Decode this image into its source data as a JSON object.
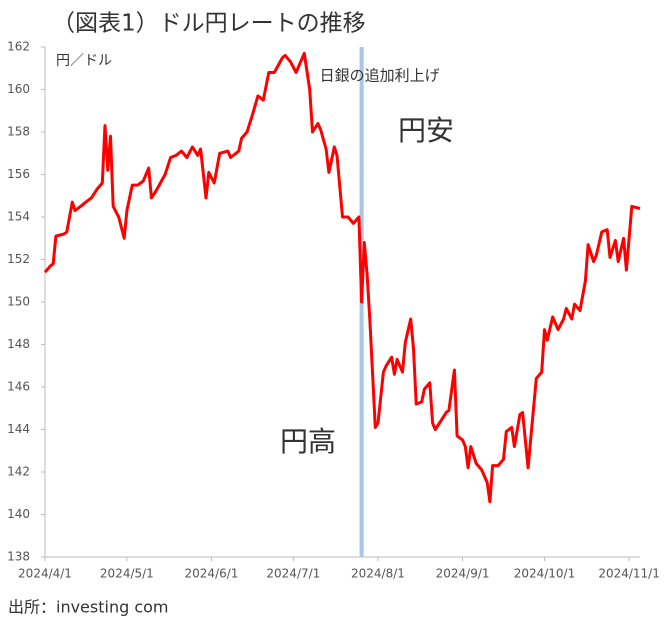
{
  "chart_data": {
    "type": "line",
    "title": "（図表1）ドル円レートの推移",
    "y_unit": "円／ドル",
    "source": "出所：investing com",
    "color": "#ff0000",
    "annotations": [
      "円安",
      "円高"
    ],
    "vline": {
      "x": "2024/7/26",
      "label": "日銀の追加利上げ",
      "color": "#a9c6e8"
    },
    "xlim": [
      "2024/4/1",
      "2024/11/5"
    ],
    "xticks": [
      "2024/4/1",
      "2024/5/1",
      "2024/6/1",
      "2024/7/1",
      "2024/8/1",
      "2024/9/1",
      "2024/10/1",
      "2024/11/1"
    ],
    "ylim": [
      138,
      162
    ],
    "yticks": [
      138,
      140,
      142,
      144,
      146,
      148,
      150,
      152,
      154,
      156,
      158,
      160,
      162
    ],
    "x": [
      "2024/4/1",
      "2024/4/3",
      "2024/4/4",
      "2024/4/5",
      "2024/4/8",
      "2024/4/9",
      "2024/4/11",
      "2024/4/12",
      "2024/4/14",
      "2024/4/16",
      "2024/4/18",
      "2024/4/20",
      "2024/4/22",
      "2024/4/23",
      "2024/4/24",
      "2024/4/25",
      "2024/4/26",
      "2024/4/28",
      "2024/4/30",
      "2024/5/1",
      "2024/5/3",
      "2024/5/5",
      "2024/5/7",
      "2024/5/9",
      "2024/5/10",
      "2024/5/12",
      "2024/5/15",
      "2024/5/17",
      "2024/5/19",
      "2024/5/21",
      "2024/5/23",
      "2024/5/25",
      "2024/5/27",
      "2024/5/28",
      "2024/5/30",
      "2024/5/31",
      "2024/6/2",
      "2024/6/4",
      "2024/6/7",
      "2024/6/8",
      "2024/6/11",
      "2024/6/12",
      "2024/6/14",
      "2024/6/16",
      "2024/6/18",
      "2024/6/20",
      "2024/6/22",
      "2024/6/24",
      "2024/6/27",
      "2024/6/28",
      "2024/6/30",
      "2024/7/2",
      "2024/7/3",
      "2024/7/5",
      "2024/7/7",
      "2024/7/8",
      "2024/7/10",
      "2024/7/11",
      "2024/7/13",
      "2024/7/14",
      "2024/7/16",
      "2024/7/17",
      "2024/7/19",
      "2024/7/21",
      "2024/7/23",
      "2024/7/25",
      "2024/7/26",
      "2024/7/27",
      "2024/7/28",
      "2024/7/29",
      "2024/7/31",
      "2024/8/1",
      "2024/8/3",
      "2024/8/4",
      "2024/8/6",
      "2024/8/7",
      "2024/8/8",
      "2024/8/10",
      "2024/8/11",
      "2024/8/13",
      "2024/8/14",
      "2024/8/15",
      "2024/8/17",
      "2024/8/18",
      "2024/8/20",
      "2024/8/21",
      "2024/8/22",
      "2024/8/24",
      "2024/8/26",
      "2024/8/27",
      "2024/8/29",
      "2024/8/30",
      "2024/9/1",
      "2024/9/2",
      "2024/9/3",
      "2024/9/4",
      "2024/9/6",
      "2024/9/8",
      "2024/9/10",
      "2024/9/11",
      "2024/9/12",
      "2024/9/14",
      "2024/9/16",
      "2024/9/17",
      "2024/9/19",
      "2024/9/20",
      "2024/9/22",
      "2024/9/23",
      "2024/9/25",
      "2024/9/26",
      "2024/9/28",
      "2024/9/30",
      "2024/10/1",
      "2024/10/2",
      "2024/10/4",
      "2024/10/6",
      "2024/10/8",
      "2024/10/9",
      "2024/10/11",
      "2024/10/12",
      "2024/10/14",
      "2024/10/16",
      "2024/10/17",
      "2024/10/19",
      "2024/10/20",
      "2024/10/22",
      "2024/10/24",
      "2024/10/25",
      "2024/10/27",
      "2024/10/28",
      "2024/10/30",
      "2024/10/31",
      "2024/11/2",
      "2024/11/5"
    ],
    "values": [
      151.4,
      151.7,
      151.8,
      153.1,
      153.2,
      153.3,
      154.7,
      154.3,
      154.5,
      154.7,
      154.9,
      155.3,
      155.6,
      158.3,
      156.2,
      157.8,
      154.5,
      154.0,
      153.0,
      154.3,
      155.5,
      155.5,
      155.7,
      156.3,
      154.9,
      155.3,
      156.0,
      156.8,
      156.9,
      157.1,
      156.8,
      157.3,
      156.9,
      157.2,
      154.9,
      156.1,
      155.6,
      157.0,
      157.1,
      156.8,
      157.1,
      157.7,
      158.0,
      158.8,
      159.7,
      159.5,
      160.8,
      160.8,
      161.5,
      161.6,
      161.3,
      160.8,
      161.1,
      161.7,
      160.0,
      158.0,
      158.4,
      158.1,
      157.2,
      156.1,
      157.3,
      156.9,
      154.0,
      154.0,
      153.7,
      154.0,
      150.0,
      152.8,
      151.3,
      149.2,
      144.1,
      144.3,
      146.7,
      147.0,
      147.4,
      146.6,
      147.3,
      146.7,
      148.1,
      149.2,
      147.8,
      145.2,
      145.3,
      145.9,
      146.2,
      144.3,
      144.0,
      144.4,
      144.8,
      144.9,
      146.8,
      143.7,
      143.5,
      143.2,
      142.2,
      143.2,
      142.4,
      142.1,
      141.5,
      140.6,
      142.3,
      142.3,
      142.6,
      143.9,
      144.1,
      143.2,
      144.7,
      144.8,
      142.2,
      143.6,
      146.4,
      146.7,
      148.7,
      148.2,
      149.3,
      148.7,
      149.2,
      149.7,
      149.2,
      149.9,
      149.6,
      151.0,
      152.7,
      151.9,
      152.2,
      153.3,
      153.4,
      152.1,
      152.9,
      151.9,
      153.0,
      151.5,
      154.5,
      154.4
    ]
  }
}
